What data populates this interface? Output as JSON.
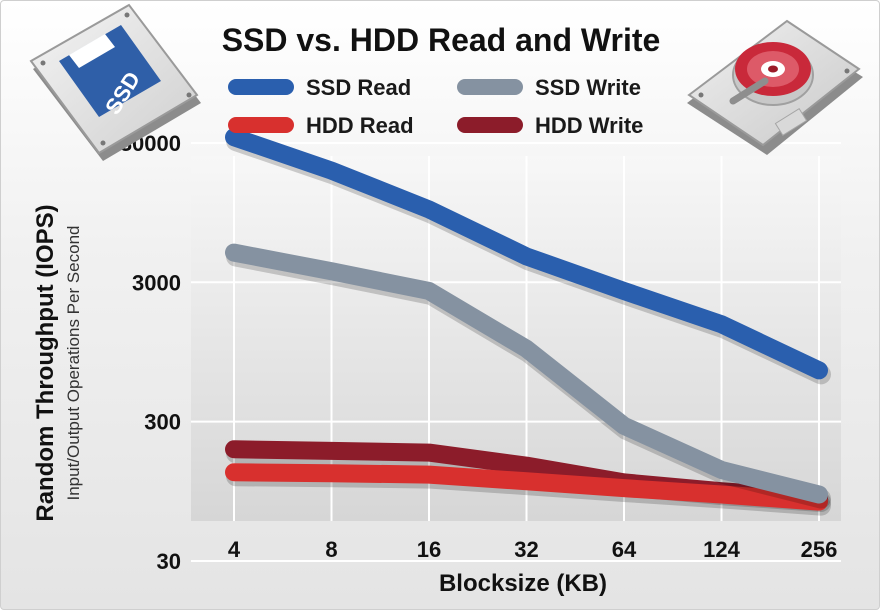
{
  "chart_data": {
    "type": "line",
    "title": "SSD vs. HDD Read and Write",
    "xlabel": "Blocksize (KB)",
    "ylabel": "Random Throughput (IOPS)",
    "ylabel_sub": "Input/Output Operations Per Second",
    "categories": [
      "4",
      "8",
      "16",
      "32",
      "64",
      "124",
      "256"
    ],
    "y_scale": "log",
    "ylim": [
      30,
      60000
    ],
    "yticks": [
      30,
      300,
      3000,
      30000
    ],
    "ytick_labels": [
      "30",
      "300",
      "3000",
      "30000"
    ],
    "grid": true,
    "legend_position": "top",
    "series": [
      {
        "name": "SSD Read",
        "color": "#2a5fae",
        "values": [
          33000,
          19000,
          10000,
          4600,
          2600,
          1500,
          700
        ]
      },
      {
        "name": "SSD Write",
        "color": "#8592a1",
        "values": [
          4900,
          3600,
          2600,
          1000,
          280,
          135,
          90
        ]
      },
      {
        "name": "HDD Read",
        "color": "#d8302e",
        "values": [
          130,
          128,
          125,
          112,
          100,
          90,
          80
        ]
      },
      {
        "name": "HDD Write",
        "color": "#8c1c2a",
        "values": [
          190,
          185,
          180,
          145,
          110,
          95,
          85
        ]
      }
    ]
  },
  "illustrations": {
    "ssd_label": "SSD"
  }
}
